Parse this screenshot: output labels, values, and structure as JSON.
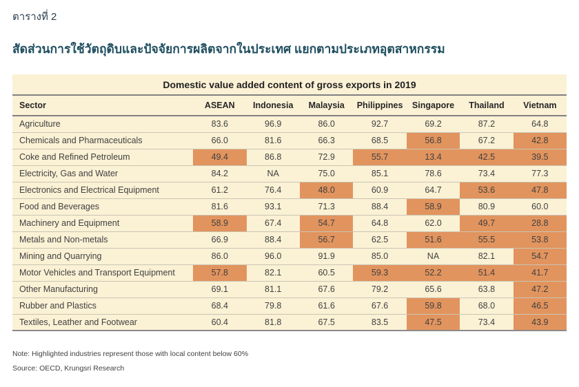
{
  "header": {
    "kicker": "ตารางที่ 2",
    "title": "สัดส่วนการใช้วัตถุดิบและปัจจัยการผลิตจากในประเทศ แยกตามประเภทอุตสาหกรรม"
  },
  "table": {
    "title": "Domestic value added content of gross exports in 2019",
    "columns": [
      "Sector",
      "ASEAN",
      "Indonesia",
      "Malaysia",
      "Philippines",
      "Singapore",
      "Thailand",
      "Vietnam"
    ],
    "highlight_threshold": 60,
    "rows": [
      {
        "sector": "Agriculture",
        "values": [
          "83.6",
          "96.9",
          "86.0",
          "92.7",
          "69.2",
          "87.2",
          "64.8"
        ]
      },
      {
        "sector": "Chemicals and Pharmaceuticals",
        "values": [
          "66.0",
          "81.6",
          "66.3",
          "68.5",
          "56.8",
          "67.2",
          "42.8"
        ]
      },
      {
        "sector": "Coke and Refined Petroleum",
        "values": [
          "49.4",
          "86.8",
          "72.9",
          "55.7",
          "13.4",
          "42.5",
          "39.5"
        ]
      },
      {
        "sector": "Electricity, Gas and Water",
        "values": [
          "84.2",
          "NA",
          "75.0",
          "85.1",
          "78.6",
          "73.4",
          "77.3"
        ]
      },
      {
        "sector": "Electronics and Electrical Equipment",
        "values": [
          "61.2",
          "76.4",
          "48.0",
          "60.9",
          "64.7",
          "53.6",
          "47.8"
        ]
      },
      {
        "sector": "Food and Beverages",
        "values": [
          "81.6",
          "93.1",
          "71.3",
          "88.4",
          "58.9",
          "80.9",
          "60.0"
        ]
      },
      {
        "sector": "Machinery and Equipment",
        "values": [
          "58.9",
          "67.4",
          "54.7",
          "64.8",
          "62.0",
          "49.7",
          "28.8"
        ]
      },
      {
        "sector": "Metals and Non-metals",
        "values": [
          "66.9",
          "88.4",
          "56.7",
          "62.5",
          "51.6",
          "55.5",
          "53.8"
        ]
      },
      {
        "sector": "Mining and Quarrying",
        "values": [
          "86.0",
          "96.0",
          "91.9",
          "85.0",
          "NA",
          "82.1",
          "54.7"
        ]
      },
      {
        "sector": "Motor Vehicles and Transport Equipment",
        "values": [
          "57.8",
          "82.1",
          "60.5",
          "59.3",
          "52.2",
          "51.4",
          "41.7"
        ]
      },
      {
        "sector": "Other Manufacturing",
        "values": [
          "69.1",
          "81.1",
          "67.6",
          "79.2",
          "65.6",
          "63.8",
          "47.2"
        ]
      },
      {
        "sector": "Rubber and Plastics",
        "values": [
          "68.4",
          "79.8",
          "61.6",
          "67.6",
          "59.8",
          "68.0",
          "46.5"
        ]
      },
      {
        "sector": "Textiles, Leather and Footwear",
        "values": [
          "60.4",
          "81.8",
          "67.5",
          "83.5",
          "47.5",
          "73.4",
          "43.9"
        ]
      }
    ]
  },
  "footer": {
    "note": "Note: Highlighted industries represent those with local content below 60%",
    "source": "Source: OECD, Krungsri Research"
  },
  "colors": {
    "highlight": "#E2945E",
    "table_background": "#FBF1D5",
    "row_rule": "#C9C5B4",
    "header_rule": "#808080",
    "title_navy": "#1F4E5F"
  }
}
